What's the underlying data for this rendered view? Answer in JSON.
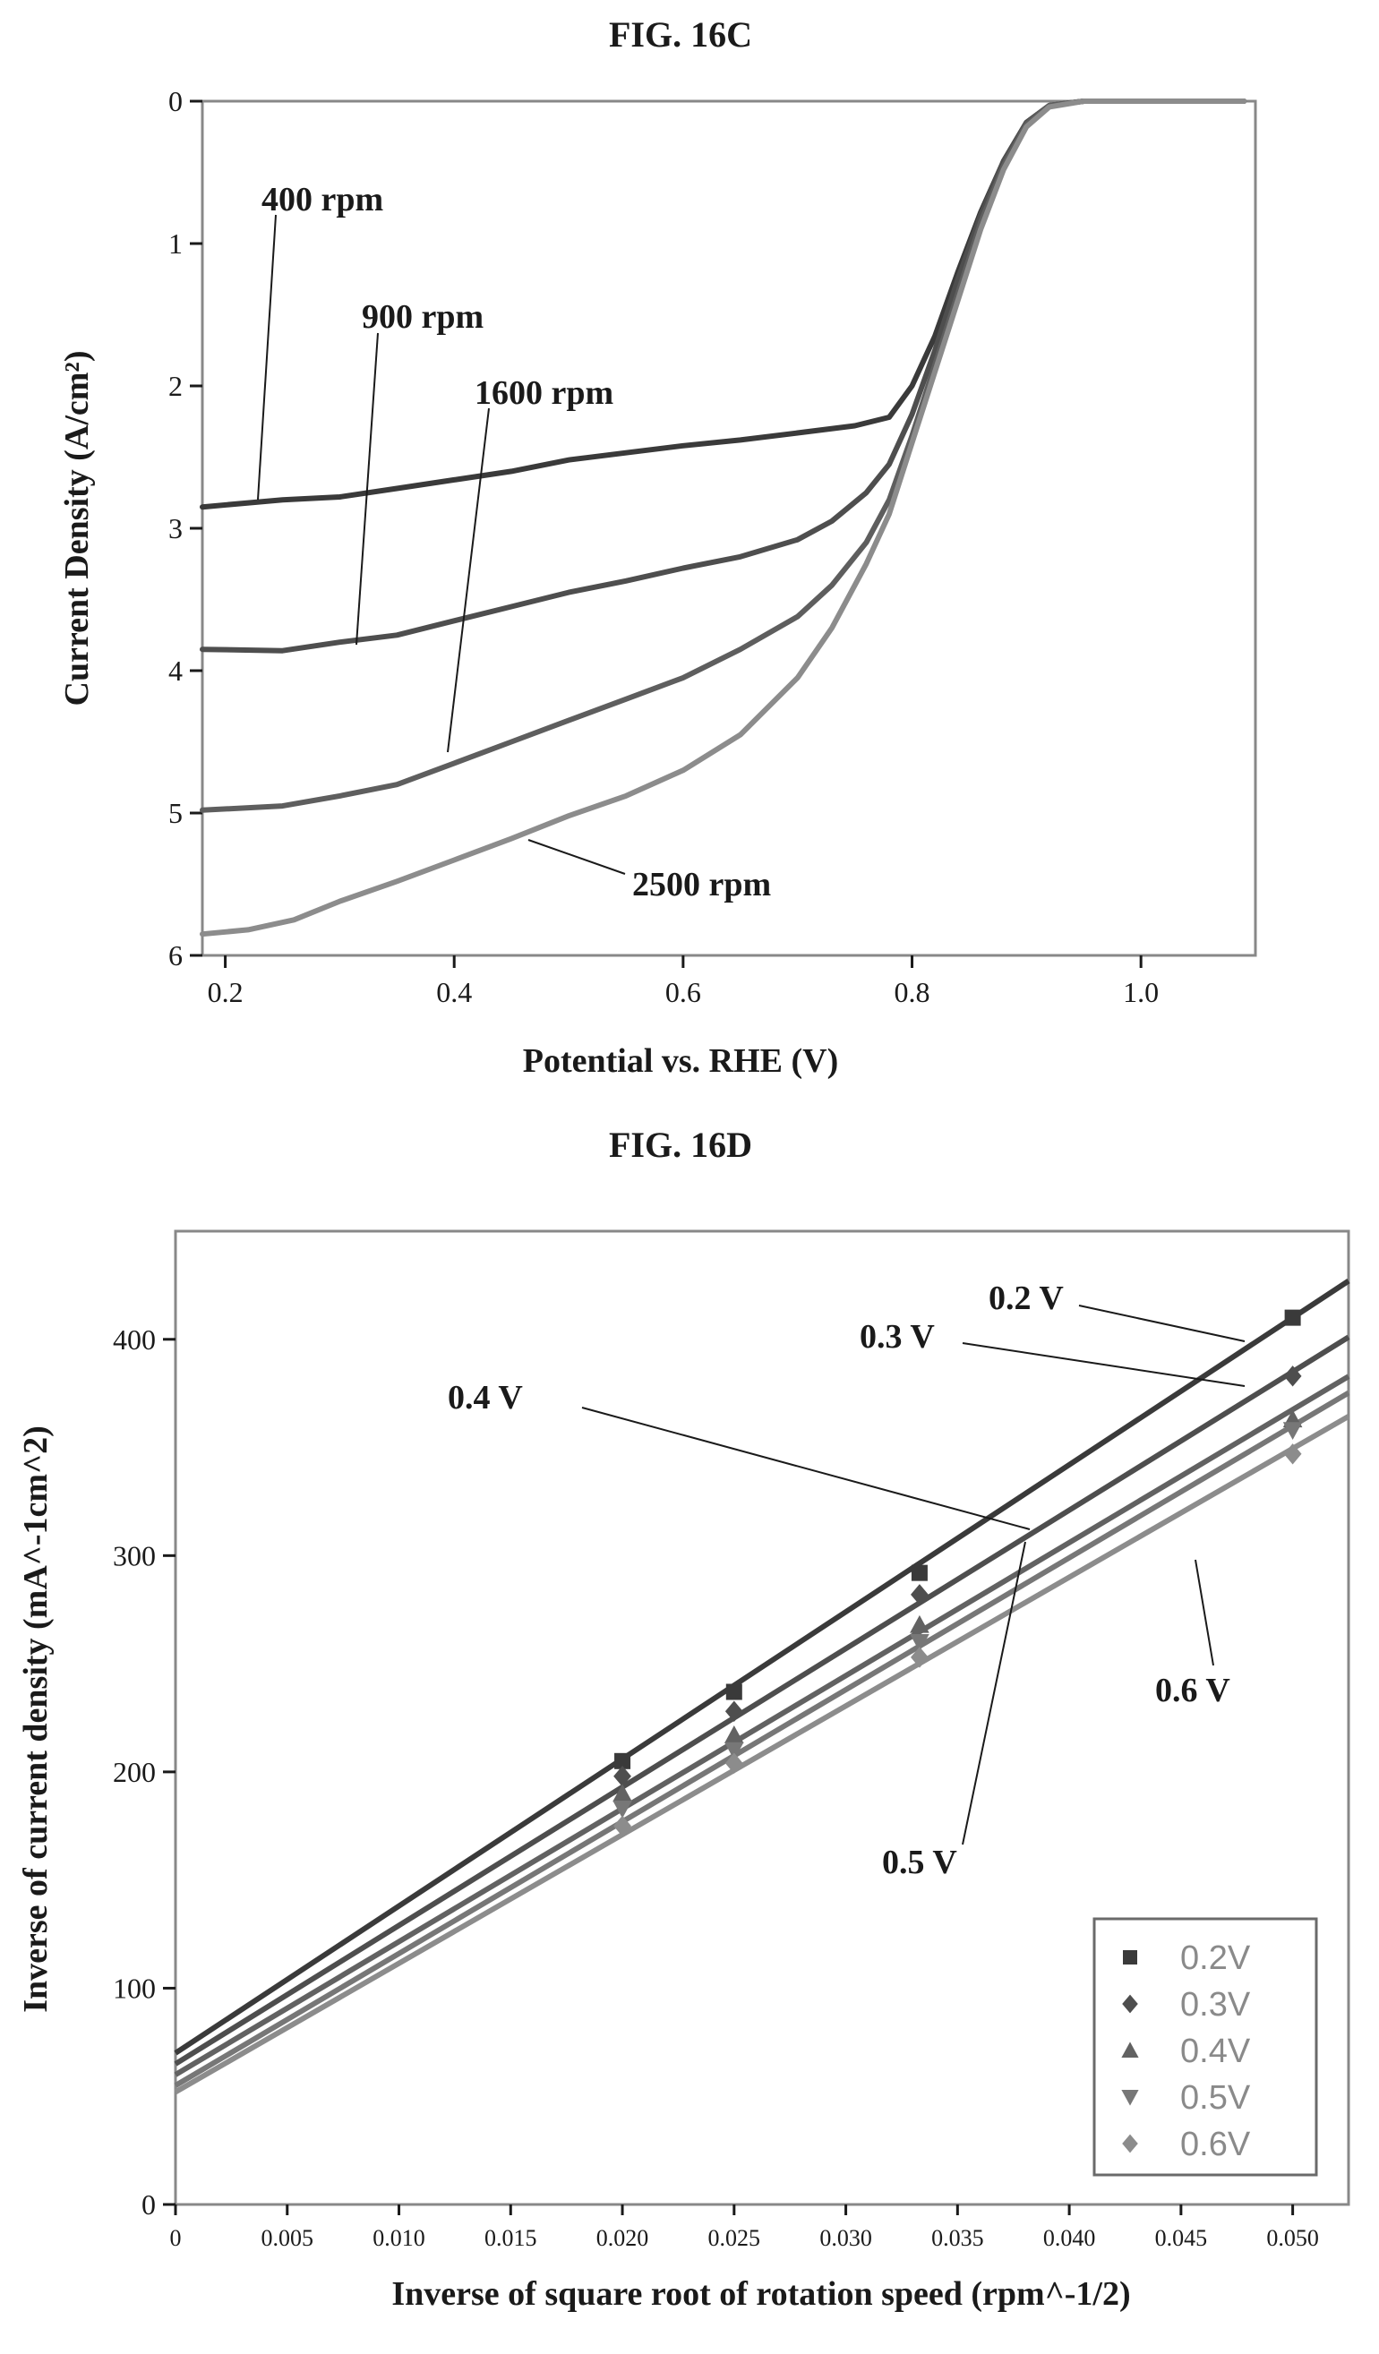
{
  "figure_c": {
    "title": "FIG. 16C",
    "annotations": [
      "400 rpm",
      "900 rpm",
      "1600 rpm",
      "2500 rpm"
    ]
  },
  "figure_d": {
    "title": "FIG. 16D",
    "annotations": [
      "0.2 V",
      "0.3 V",
      "0.4 V",
      "0.5 V",
      "0.6 V"
    ],
    "legend": [
      "0.2V",
      "0.3V",
      "0.4V",
      "0.5V",
      "0.6V"
    ]
  },
  "chart_data": [
    {
      "type": "line",
      "title": "FIG. 16C",
      "xlabel": "Potential vs. RHE (V)",
      "ylabel": "Current Density (A/cm²)",
      "xlim": [
        0.18,
        1.1
      ],
      "ylim": [
        0,
        6
      ],
      "y_inverted": true,
      "x_ticks": [
        "0.2",
        "0.4",
        "0.6",
        "0.8",
        "1.0"
      ],
      "y_ticks": [
        "0",
        "1",
        "2",
        "3",
        "4",
        "5",
        "6"
      ],
      "grid": false,
      "series": [
        {
          "name": "400 rpm",
          "color": "#3a3a3a",
          "x": [
            0.18,
            0.25,
            0.3,
            0.35,
            0.4,
            0.45,
            0.5,
            0.55,
            0.6,
            0.65,
            0.7,
            0.75,
            0.78,
            0.8,
            0.82,
            0.84,
            0.86,
            0.88,
            0.9,
            0.92,
            0.95,
            1.0,
            1.05,
            1.09
          ],
          "y": [
            2.85,
            2.8,
            2.78,
            2.72,
            2.66,
            2.6,
            2.52,
            2.47,
            2.42,
            2.38,
            2.33,
            2.28,
            2.22,
            2.0,
            1.65,
            1.2,
            0.78,
            0.42,
            0.15,
            0.03,
            0,
            0,
            0,
            0
          ]
        },
        {
          "name": "900 rpm",
          "color": "#4e4e4e",
          "x": [
            0.18,
            0.25,
            0.3,
            0.35,
            0.4,
            0.45,
            0.5,
            0.55,
            0.6,
            0.65,
            0.7,
            0.73,
            0.76,
            0.78,
            0.8,
            0.82,
            0.84,
            0.86,
            0.88,
            0.9,
            0.92,
            0.95,
            1.0,
            1.05,
            1.09
          ],
          "y": [
            3.85,
            3.86,
            3.8,
            3.75,
            3.65,
            3.55,
            3.45,
            3.37,
            3.28,
            3.2,
            3.08,
            2.95,
            2.75,
            2.55,
            2.2,
            1.75,
            1.25,
            0.8,
            0.42,
            0.15,
            0.03,
            0,
            0,
            0,
            0
          ]
        },
        {
          "name": "1600 rpm",
          "color": "#5e5e5e",
          "x": [
            0.18,
            0.25,
            0.3,
            0.35,
            0.4,
            0.45,
            0.5,
            0.55,
            0.6,
            0.65,
            0.7,
            0.73,
            0.76,
            0.78,
            0.8,
            0.82,
            0.84,
            0.86,
            0.88,
            0.9,
            0.92,
            0.95,
            1.0,
            1.05,
            1.09
          ],
          "y": [
            4.98,
            4.95,
            4.88,
            4.8,
            4.65,
            4.5,
            4.35,
            4.2,
            4.05,
            3.85,
            3.62,
            3.4,
            3.1,
            2.8,
            2.35,
            1.85,
            1.35,
            0.85,
            0.45,
            0.16,
            0.03,
            0,
            0,
            0,
            0
          ]
        },
        {
          "name": "2500 rpm",
          "color": "#8c8c8c",
          "x": [
            0.18,
            0.22,
            0.26,
            0.3,
            0.35,
            0.4,
            0.45,
            0.5,
            0.55,
            0.6,
            0.65,
            0.7,
            0.73,
            0.76,
            0.78,
            0.8,
            0.82,
            0.84,
            0.86,
            0.88,
            0.9,
            0.92,
            0.95,
            1.0,
            1.05,
            1.09
          ],
          "y": [
            5.85,
            5.82,
            5.75,
            5.62,
            5.48,
            5.33,
            5.18,
            5.02,
            4.88,
            4.7,
            4.45,
            4.05,
            3.7,
            3.25,
            2.9,
            2.4,
            1.9,
            1.4,
            0.9,
            0.48,
            0.18,
            0.04,
            0,
            0,
            0,
            0
          ]
        }
      ]
    },
    {
      "type": "scatter",
      "title": "FIG. 16D",
      "xlabel": "Inverse of square root of rotation speed (rpm^-1/2)",
      "ylabel": "Inverse of current density (mA^-1cm^2)",
      "xlim": [
        0,
        0.0525
      ],
      "ylim": [
        0,
        450
      ],
      "x_ticks": [
        "0",
        "0.005",
        "0.010",
        "0.015",
        "0.020",
        "0.025",
        "0.030",
        "0.035",
        "0.040",
        "0.045",
        "0.050"
      ],
      "y_ticks": [
        "0",
        "100",
        "200",
        "300",
        "400"
      ],
      "grid": false,
      "legend_position": "bottom-right",
      "series": [
        {
          "name": "0.2V",
          "marker": "square",
          "color": "#3a3a3a",
          "x": [
            0.02,
            0.025,
            0.0333,
            0.05
          ],
          "y": [
            205,
            237,
            292,
            410
          ],
          "fit": {
            "slope": 6800,
            "intercept": 70
          }
        },
        {
          "name": "0.3V",
          "marker": "diamond",
          "color": "#4e4e4e",
          "x": [
            0.02,
            0.025,
            0.0333,
            0.05
          ],
          "y": [
            198,
            228,
            282,
            383
          ],
          "fit": {
            "slope": 6400,
            "intercept": 65
          }
        },
        {
          "name": "0.4V",
          "marker": "triangle",
          "color": "#626262",
          "x": [
            0.02,
            0.025,
            0.0333,
            0.05
          ],
          "y": [
            190,
            217,
            268,
            363
          ],
          "fit": {
            "slope": 6150,
            "intercept": 60
          }
        },
        {
          "name": "0.5V",
          "marker": "triangle-down",
          "color": "#777777",
          "x": [
            0.02,
            0.025,
            0.0333,
            0.05
          ],
          "y": [
            183,
            210,
            260,
            358
          ],
          "fit": {
            "slope": 6100,
            "intercept": 55
          }
        },
        {
          "name": "0.6V",
          "marker": "diamond",
          "color": "#8c8c8c",
          "x": [
            0.02,
            0.025,
            0.0333,
            0.05
          ],
          "y": [
            175,
            204,
            253,
            347
          ],
          "fit": {
            "slope": 5950,
            "intercept": 52
          }
        }
      ]
    }
  ]
}
